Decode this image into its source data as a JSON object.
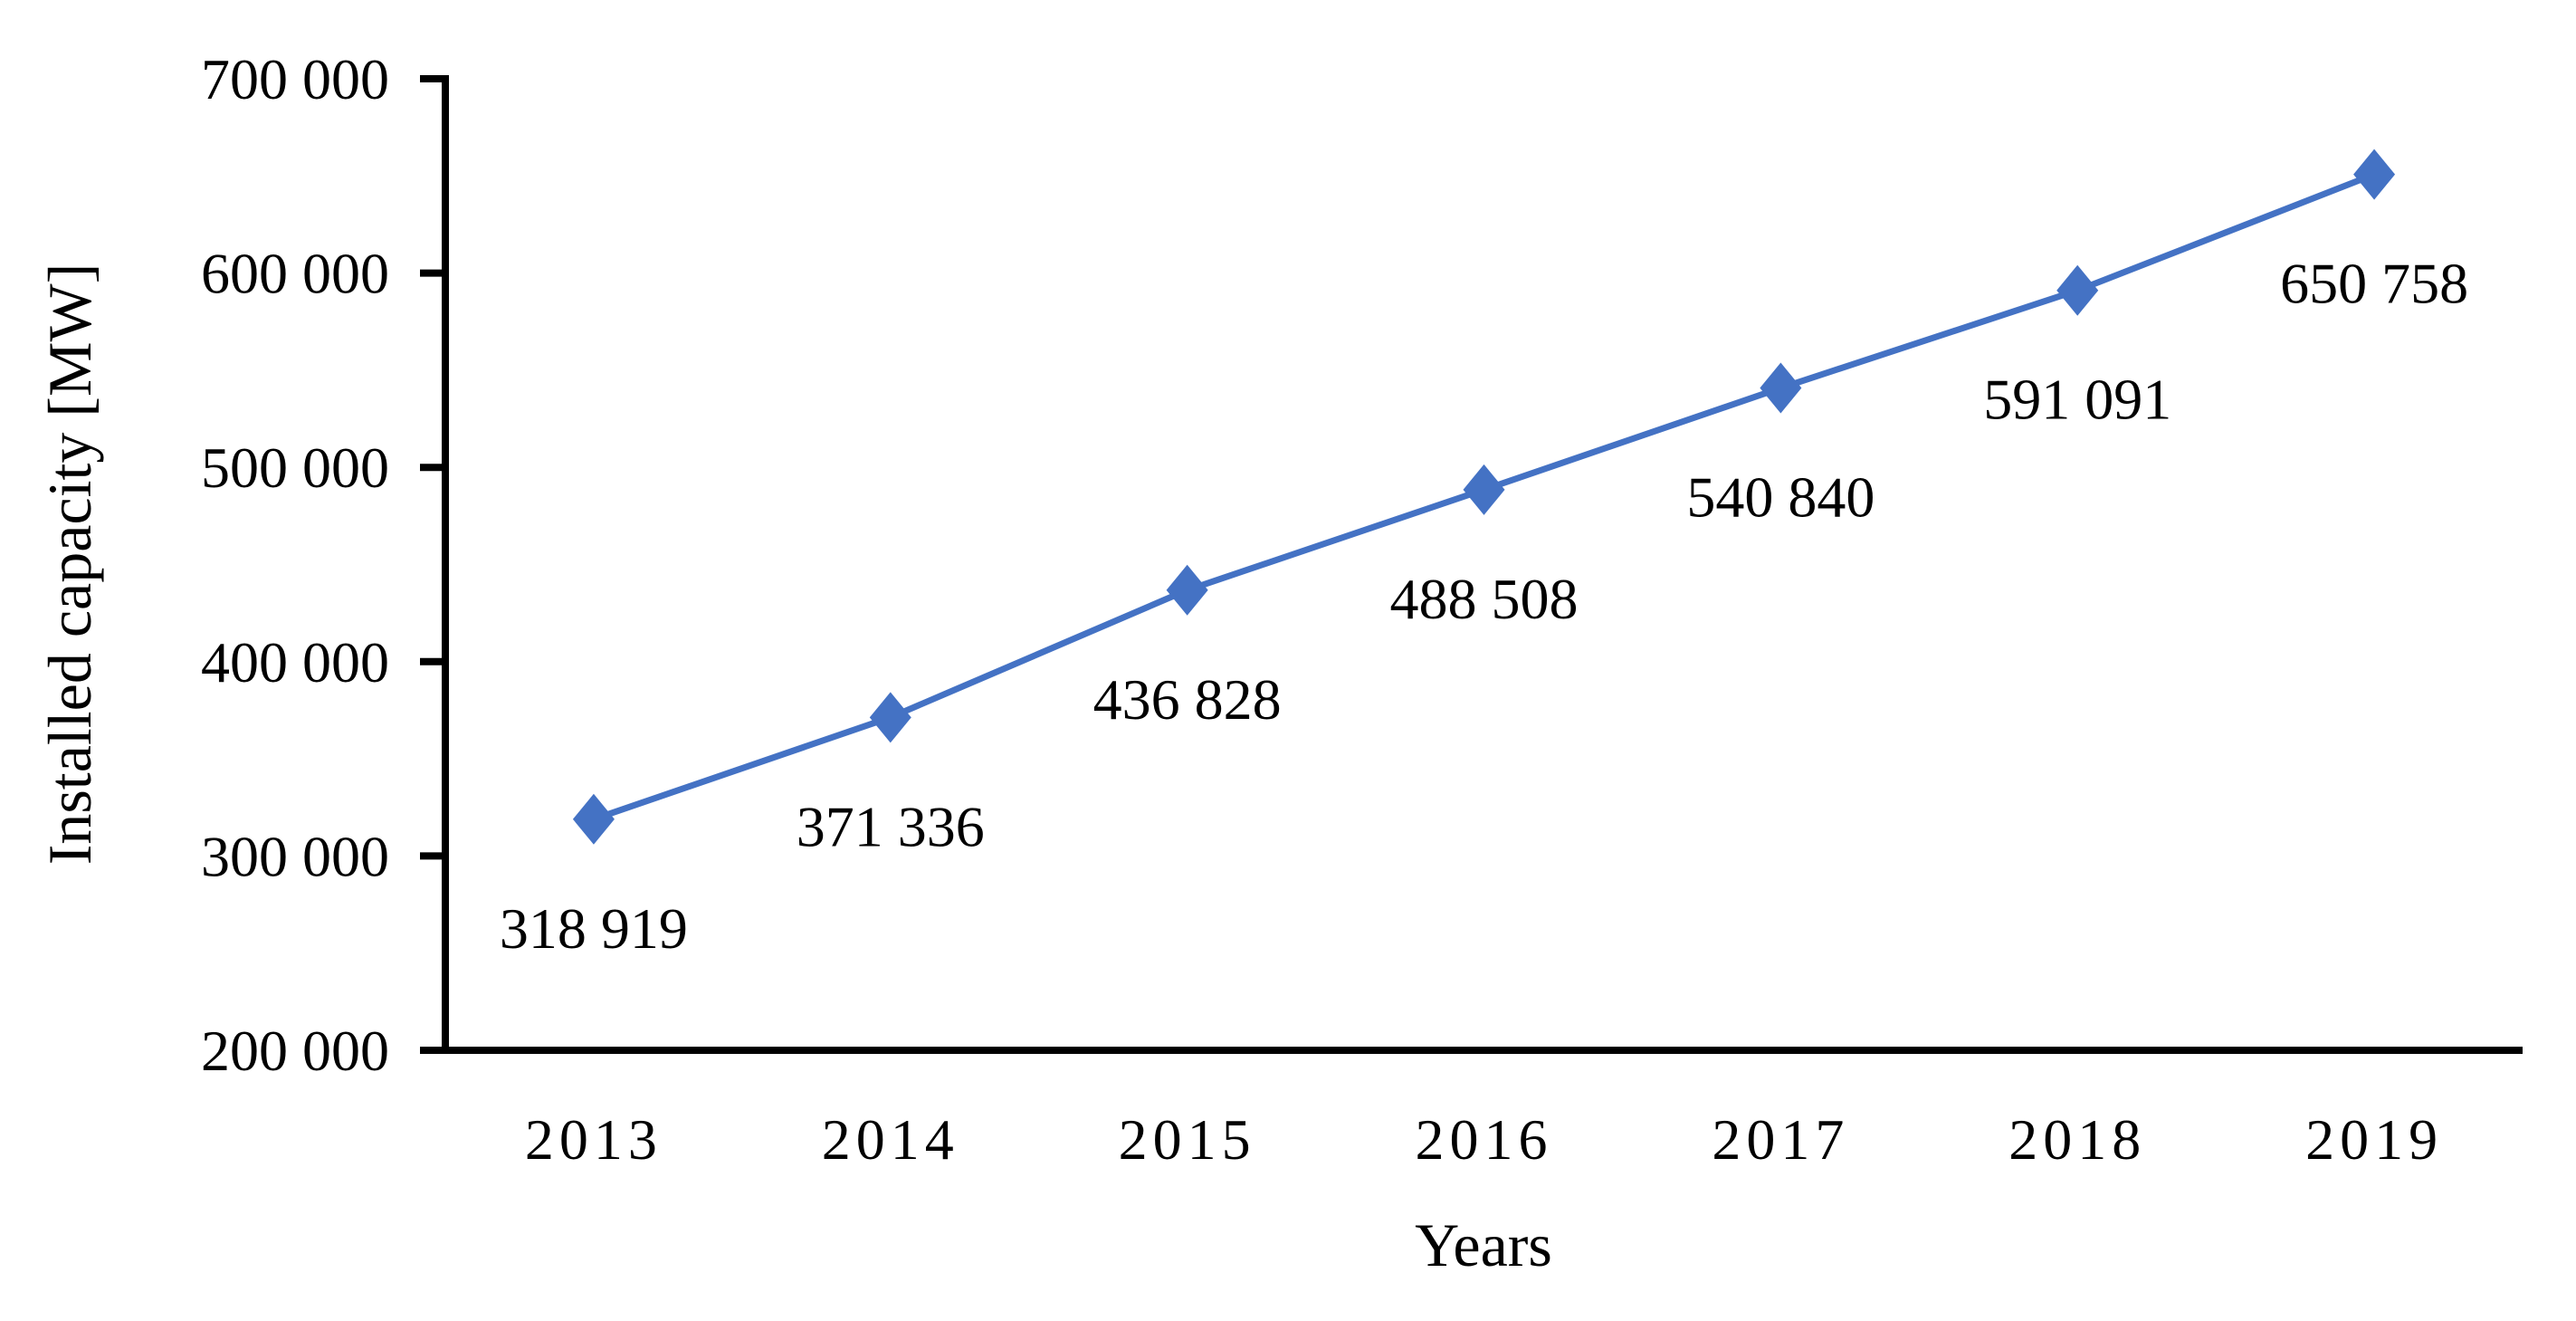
{
  "chart_data": {
    "type": "line",
    "title": "",
    "xlabel": "Years",
    "ylabel": "Installed capacity [MW]",
    "categories": [
      "2013",
      "2014",
      "2015",
      "2016",
      "2017",
      "2018",
      "2019"
    ],
    "series": [
      {
        "name": "Installed capacity",
        "values": [
          318919,
          371336,
          436828,
          488508,
          540840,
          591091,
          650758
        ],
        "point_labels": [
          "318 919",
          "371 336",
          "436 828",
          "488 508",
          "540 840",
          "591 091",
          "650 758"
        ],
        "color": "#4472C4",
        "marker": "diamond"
      }
    ],
    "ylim": [
      200000,
      700000
    ],
    "y_tick_step": 100000,
    "y_tick_labels": [
      "200 000",
      "300 000",
      "400 000",
      "500 000",
      "600 000",
      "700 000"
    ],
    "axis_color": "#000000",
    "grid": "off",
    "legend": "none"
  }
}
